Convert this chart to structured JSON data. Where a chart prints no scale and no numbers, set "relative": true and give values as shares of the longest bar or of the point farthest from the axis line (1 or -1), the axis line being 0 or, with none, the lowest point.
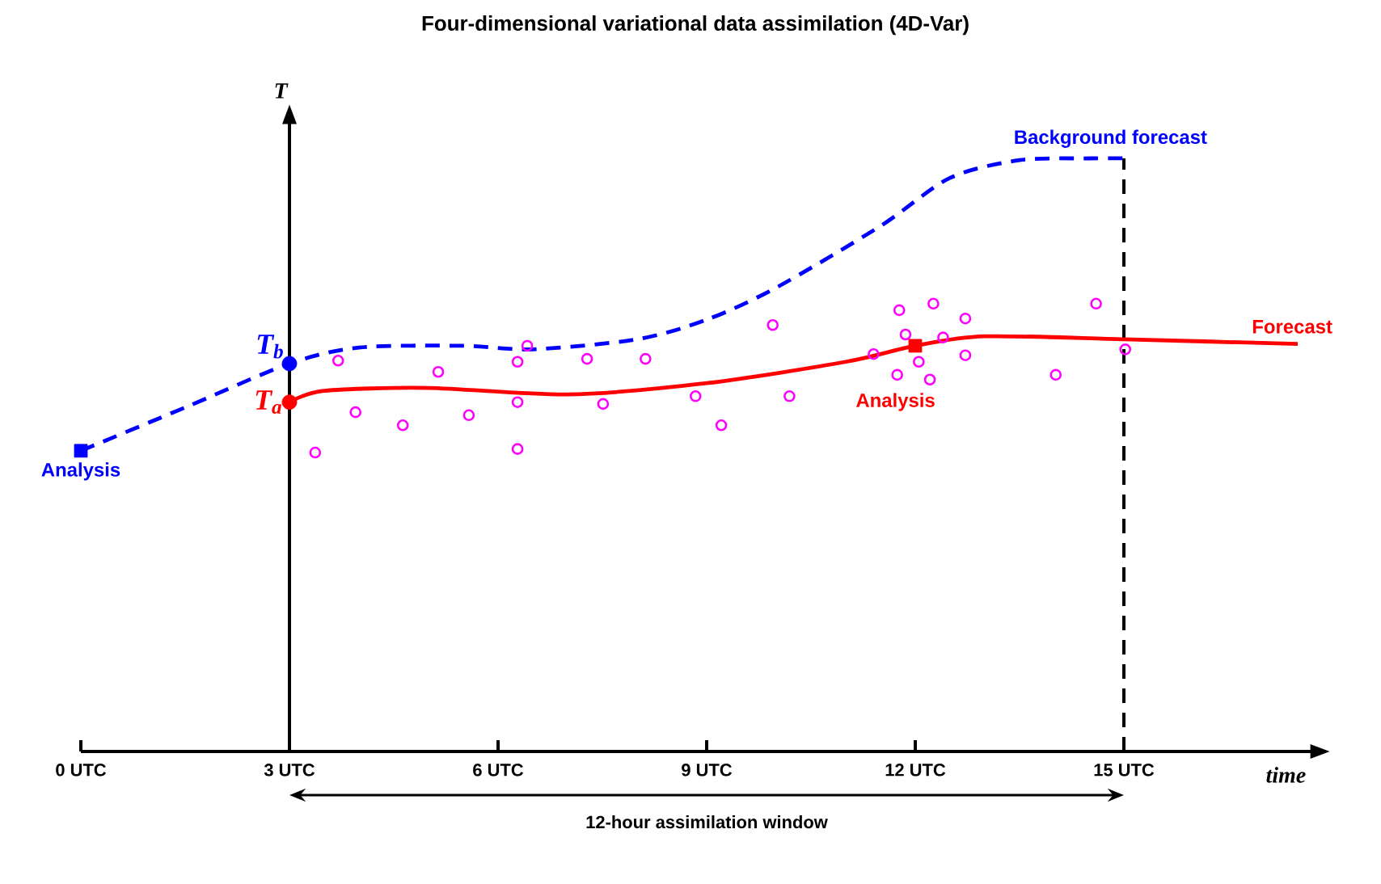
{
  "chart_data": {
    "type": "line",
    "title": "Four-dimensional variational data assimilation (4D-Var)",
    "xlabel": "time",
    "ylabel": "T",
    "relative": true,
    "xlim": [
      0,
      17.7
    ],
    "xticks": [
      {
        "value": 0,
        "label": "0 UTC"
      },
      {
        "value": 3,
        "label": "3 UTC"
      },
      {
        "value": 6,
        "label": "6 UTC"
      },
      {
        "value": 9,
        "label": "9 UTC"
      },
      {
        "value": 12,
        "label": "12 UTC"
      },
      {
        "value": 15,
        "label": "15 UTC"
      }
    ],
    "series": [
      {
        "name": "Background forecast",
        "type": "line",
        "line_style": "dashed",
        "color": "#0000ff",
        "x": [
          0,
          1.5,
          3,
          4,
          5.5,
          6.5,
          8,
          9,
          10,
          11.5,
          12.5,
          13.5,
          14.5,
          15
        ],
        "values": [
          0.507,
          0.58,
          0.654,
          0.681,
          0.684,
          0.678,
          0.695,
          0.728,
          0.782,
          0.886,
          0.967,
          0.997,
          1,
          1
        ]
      },
      {
        "name": "Forecast",
        "type": "line",
        "line_style": "solid",
        "color": "#ff0000",
        "x": [
          3,
          3.5,
          5,
          7,
          9,
          11,
          12,
          13,
          15,
          17.5
        ],
        "values": [
          0.589,
          0.608,
          0.613,
          0.602,
          0.621,
          0.657,
          0.684,
          0.7,
          0.695,
          0.687
        ]
      },
      {
        "type": "scatter",
        "marker": "square",
        "color": "#0000ff",
        "x": [
          0
        ],
        "values": [
          0.507
        ]
      },
      {
        "type": "scatter",
        "marker": "circle",
        "color": "#0000ff",
        "x": [
          3
        ],
        "values": [
          0.654
        ]
      },
      {
        "type": "scatter",
        "marker": "circle",
        "color": "#ff0000",
        "x": [
          3
        ],
        "values": [
          0.589
        ]
      },
      {
        "type": "scatter",
        "marker": "square",
        "color": "#ff0000",
        "x": [
          12
        ],
        "values": [
          0.684
        ]
      },
      {
        "type": "scatter",
        "marker": "circle",
        "color": "#ff00ff",
        "x": [
          3.7,
          3.95,
          4.63,
          3.37,
          5.14,
          5.58,
          6.28,
          6.28,
          6.28,
          6.42,
          7.28,
          7.51,
          8.12,
          8.84,
          9.21,
          9.95,
          10.19,
          11.4,
          11.77,
          11.86,
          11.74,
          12.05,
          12.26,
          12.21,
          12.4,
          12.72,
          12.72,
          14.02,
          14.6,
          15.02
        ],
        "values": [
          0.659,
          0.572,
          0.55,
          0.504,
          0.64,
          0.567,
          0.657,
          0.589,
          0.51,
          0.684,
          0.662,
          0.586,
          0.662,
          0.599,
          0.55,
          0.719,
          0.599,
          0.67,
          0.744,
          0.703,
          0.635,
          0.657,
          0.755,
          0.627,
          0.698,
          0.73,
          0.668,
          0.635,
          0.755,
          0.678
        ]
      }
    ],
    "ref_lines": [
      {
        "axis": "x",
        "value": 3,
        "line_style": "solid",
        "color": "#000000"
      },
      {
        "axis": "x",
        "value": 15,
        "line_style": "dashed",
        "color": "#000000"
      }
    ],
    "annotations": [
      {
        "text": "Analysis",
        "x": 0,
        "y": 0.507
      },
      {
        "text": "T$_{b}$",
        "x": 3,
        "y": 0.654
      },
      {
        "text": "T$_{a}$",
        "x": 3,
        "y": 0.589
      },
      {
        "text": "Analysis",
        "x": 12,
        "y": 0.684
      },
      "12-hour assimilation window"
    ]
  }
}
